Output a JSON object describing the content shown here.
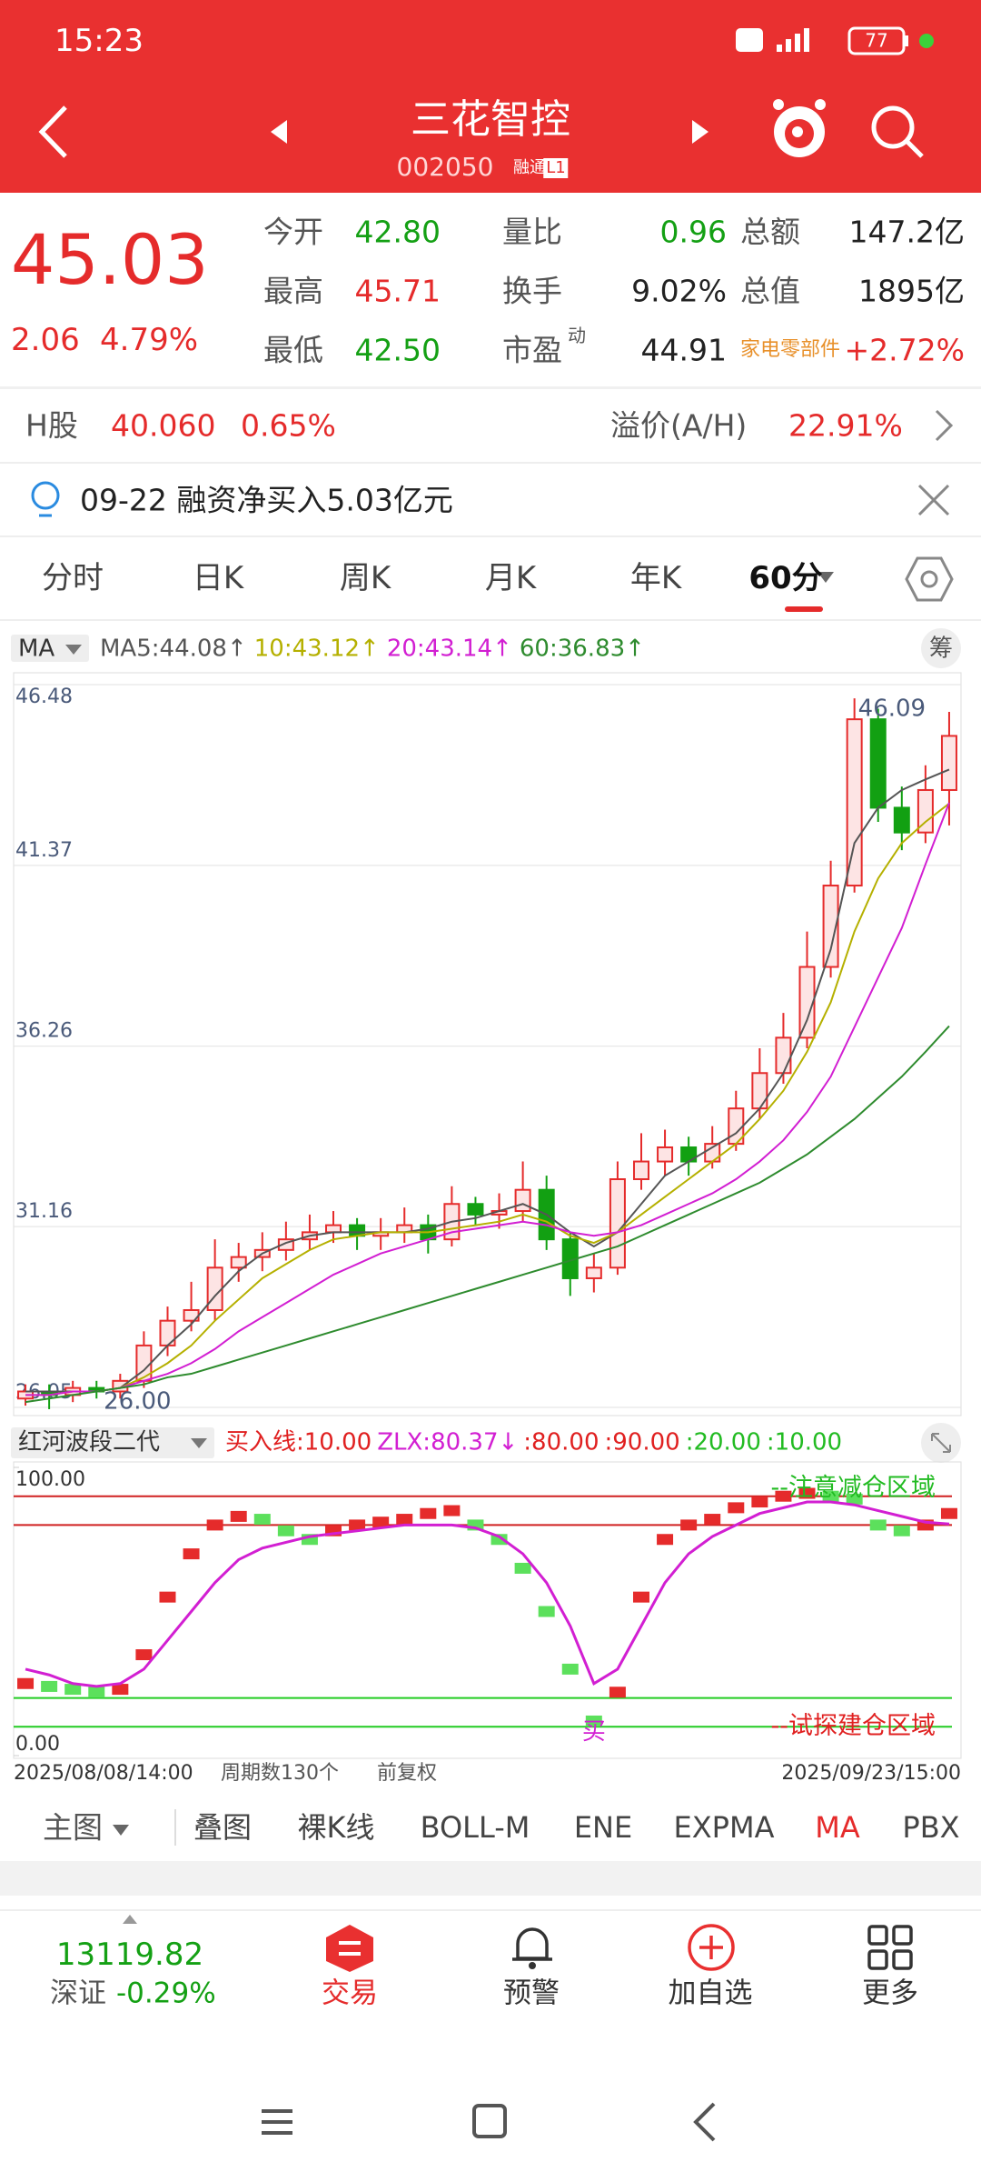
{
  "status": {
    "time": "15:23",
    "battery": "77"
  },
  "header": {
    "title": "三花智控",
    "code": "002050",
    "badge1": "融通",
    "badge2": "L1"
  },
  "quote": {
    "price": "45.03",
    "change": "2.06",
    "change_pct": "4.79%",
    "rows": [
      [
        {
          "label": "今开",
          "value": "42.80"
        },
        {
          "label": "量比",
          "value": "0.96"
        },
        {
          "label": "总额",
          "value": "147.2亿"
        }
      ],
      [
        {
          "label": "最高",
          "value": "45.71"
        },
        {
          "label": "换手",
          "value": "9.02%"
        },
        {
          "label": "总值",
          "value": "1895亿"
        }
      ],
      [
        {
          "label": "最低",
          "value": "42.50"
        },
        {
          "label": "市盈",
          "value": "44.91",
          "sup": "动"
        },
        {
          "label": "家电零部件",
          "value": "+2.72%"
        }
      ]
    ]
  },
  "hshare": {
    "label": "H股",
    "price": "40.060",
    "pct": "0.65%",
    "premium_label": "溢价(A/H)",
    "premium": "22.91%"
  },
  "notice": {
    "text": "09-22 融资净买入5.03亿元"
  },
  "tabs": {
    "items": [
      "分时",
      "日K",
      "周K",
      "月K",
      "年K",
      "60分"
    ],
    "active": 5
  },
  "kline": {
    "selector": "MA",
    "chip": "筹",
    "legend": [
      {
        "text": "MA5:44.08↑",
        "color": "#555555"
      },
      {
        "text": "10:43.12↑",
        "color": "#b5b000"
      },
      {
        "text": "20:43.14↑",
        "color": "#d21fd2"
      },
      {
        "text": "60:36.83↑",
        "color": "#2e8b2e"
      }
    ],
    "ylim": [
      26.05,
      46.48
    ],
    "yticks": [
      46.48,
      41.37,
      36.26,
      31.16,
      26.05
    ],
    "max_label": 46.09,
    "min_label": {
      "value": 26,
      "label": "26.00"
    },
    "open": [
      26.3,
      26.5,
      26.4,
      26.6,
      26.5,
      26.8,
      27.8,
      28.5,
      28.8,
      30.0,
      30.3,
      30.5,
      30.8,
      31.0,
      31.2,
      30.9,
      31.0,
      31.2,
      30.8,
      31.8,
      31.5,
      31.6,
      32.2,
      30.8,
      29.7,
      30.0,
      32.5,
      33.0,
      33.4,
      33.0,
      33.5,
      34.5,
      35.5,
      36.5,
      38.5,
      40.8,
      45.5,
      43.0,
      42.3,
      43.5
    ],
    "close": [
      26.5,
      26.4,
      26.6,
      26.5,
      26.8,
      27.8,
      28.5,
      28.8,
      30.0,
      30.3,
      30.5,
      30.8,
      31.0,
      31.2,
      30.9,
      31.0,
      31.2,
      30.8,
      31.8,
      31.5,
      31.6,
      32.2,
      30.8,
      29.7,
      30.0,
      32.5,
      33.0,
      33.4,
      33.0,
      33.5,
      34.5,
      35.5,
      36.5,
      38.5,
      40.8,
      45.5,
      43.0,
      42.3,
      43.5,
      45.03
    ],
    "high": [
      26.7,
      26.7,
      26.8,
      26.8,
      27.0,
      28.2,
      28.9,
      29.6,
      30.8,
      30.7,
      31.0,
      31.3,
      31.5,
      31.6,
      31.4,
      31.4,
      31.7,
      31.5,
      32.3,
      32.0,
      32.1,
      33.0,
      32.6,
      31.0,
      30.4,
      33.0,
      33.8,
      33.9,
      33.7,
      34.0,
      35.0,
      36.2,
      37.2,
      39.5,
      41.5,
      46.09,
      45.8,
      43.6,
      44.2,
      45.71
    ],
    "low": [
      26.1,
      26.0,
      26.2,
      26.3,
      26.3,
      26.6,
      27.5,
      28.2,
      28.5,
      29.6,
      29.9,
      30.2,
      30.5,
      30.7,
      30.5,
      30.5,
      30.7,
      30.4,
      30.6,
      31.2,
      31.1,
      31.3,
      30.5,
      29.2,
      29.3,
      29.8,
      32.2,
      32.6,
      32.6,
      32.8,
      33.3,
      34.2,
      35.2,
      36.2,
      38.2,
      40.6,
      42.6,
      41.8,
      42.0,
      42.5
    ],
    "ma": [
      {
        "color": "#555555",
        "values": [
          26.5,
          26.5,
          26.5,
          26.5,
          26.6,
          27.1,
          27.8,
          28.4,
          29.2,
          29.9,
          30.4,
          30.7,
          30.9,
          31.0,
          31.0,
          31.0,
          31.0,
          31.1,
          31.3,
          31.4,
          31.6,
          31.8,
          31.5,
          31.0,
          30.6,
          31.0,
          31.8,
          32.6,
          33.0,
          33.4,
          33.8,
          34.5,
          35.5,
          37.0,
          39.0,
          42.0,
          43.0,
          43.5,
          43.8,
          44.08
        ]
      },
      {
        "color": "#b5b000",
        "values": [
          26.4,
          26.4,
          26.5,
          26.5,
          26.6,
          26.9,
          27.3,
          27.8,
          28.5,
          29.1,
          29.7,
          30.1,
          30.5,
          30.8,
          30.9,
          31.0,
          31.0,
          31.0,
          31.1,
          31.2,
          31.3,
          31.5,
          31.3,
          30.9,
          30.7,
          31.0,
          31.5,
          32.0,
          32.5,
          33.0,
          33.5,
          34.2,
          35.0,
          36.1,
          37.5,
          39.5,
          41.0,
          42.0,
          42.6,
          43.12
        ]
      },
      {
        "color": "#d21fd2",
        "values": [
          26.4,
          26.4,
          26.5,
          26.5,
          26.6,
          26.8,
          27.0,
          27.3,
          27.7,
          28.2,
          28.6,
          29.0,
          29.4,
          29.8,
          30.1,
          30.4,
          30.6,
          30.8,
          31.0,
          31.1,
          31.2,
          31.3,
          31.2,
          31.0,
          30.9,
          31.0,
          31.2,
          31.5,
          31.8,
          32.1,
          32.5,
          33.0,
          33.6,
          34.4,
          35.4,
          36.8,
          38.2,
          39.6,
          41.4,
          43.14
        ]
      },
      {
        "color": "#2e8b2e",
        "values": [
          26.2,
          26.3,
          26.4,
          26.5,
          26.6,
          26.7,
          26.9,
          27.0,
          27.2,
          27.4,
          27.6,
          27.8,
          28.0,
          28.2,
          28.4,
          28.6,
          28.8,
          29.0,
          29.2,
          29.4,
          29.6,
          29.8,
          30.0,
          30.2,
          30.4,
          30.6,
          30.9,
          31.2,
          31.5,
          31.8,
          32.1,
          32.4,
          32.8,
          33.2,
          33.7,
          34.2,
          34.8,
          35.4,
          36.1,
          36.83
        ]
      }
    ]
  },
  "indicator": {
    "name": "红河波段二代",
    "legend": [
      {
        "text": "买入线:10.00",
        "color": "#e02020"
      },
      {
        "text": "ZLX:80.37↓",
        "color": "#d21fd2"
      },
      {
        "text": ":80.00",
        "color": "#e02020"
      },
      {
        "text": ":90.00",
        "color": "#e02020"
      },
      {
        "text": ":20.00",
        "color": "#22bb22"
      },
      {
        "text": ":10.00",
        "color": "#22bb22"
      }
    ],
    "ylim": [
      0,
      100
    ],
    "yticks": [
      {
        "value": 100,
        "label": "100.00"
      },
      {
        "value": 0,
        "label": "0.00"
      }
    ],
    "levels": [
      {
        "value": 90,
        "color": "#d02020"
      },
      {
        "value": 80,
        "color": "#d02020"
      },
      {
        "value": 20,
        "color": "#22cc22"
      },
      {
        "value": 10,
        "color": "#22cc22"
      }
    ],
    "top_zone": "--注意减仓区域",
    "bottom_zone": "--试探建仓区域",
    "buy": "买",
    "values": [
      25,
      24,
      23,
      22,
      23,
      35,
      55,
      70,
      80,
      83,
      82,
      78,
      75,
      78,
      80,
      81,
      82,
      84,
      85,
      80,
      75,
      65,
      50,
      30,
      12,
      22,
      55,
      75,
      80,
      82,
      86,
      88,
      90,
      91,
      90,
      89,
      80,
      78,
      80,
      84
    ],
    "zlx": [
      30,
      28,
      25,
      24,
      25,
      30,
      40,
      50,
      60,
      68,
      72,
      74,
      76,
      77,
      78,
      79,
      80,
      80,
      80,
      79,
      76,
      70,
      60,
      45,
      25,
      30,
      45,
      60,
      70,
      76,
      80,
      84,
      86,
      88,
      88,
      87,
      85,
      83,
      81,
      80.37
    ]
  },
  "range": {
    "start": "2025/08/08/14:00",
    "count": "周期数130个",
    "adjust": "前复权",
    "end": "2025/09/23/15:00"
  },
  "indicator_tabs": {
    "main": "主图",
    "items": [
      "叠图",
      "裸K线",
      "BOLL-M",
      "ENE",
      "EXPMA",
      "MA",
      "PBX"
    ],
    "active": 5
  },
  "bottom": {
    "index_value": "13119.82",
    "index_name": "深证",
    "index_pct": "-0.29%",
    "items": [
      "交易",
      "预警",
      "加自选",
      "更多"
    ]
  }
}
